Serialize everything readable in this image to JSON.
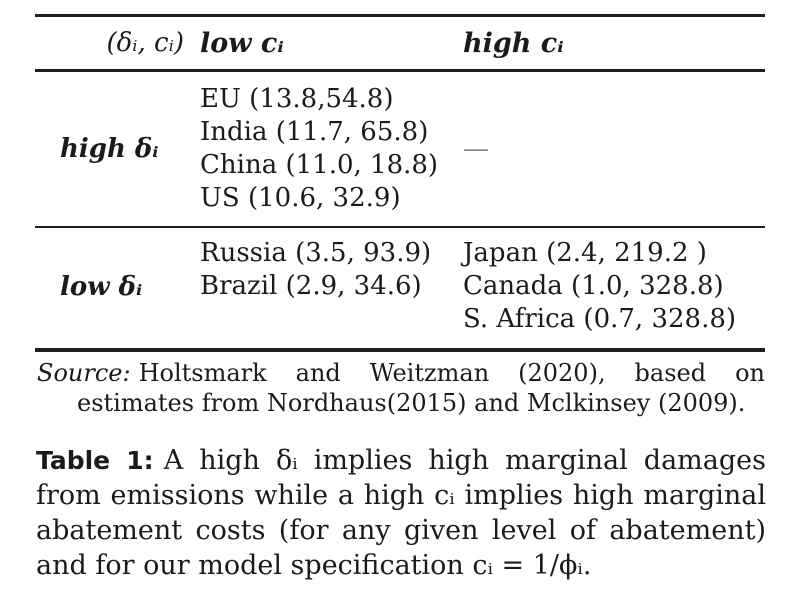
{
  "colors": {
    "text": "#1b1b1b",
    "rule": "#1e1e1e",
    "empty_dash": "#8a8a8a",
    "background": "#ffffff"
  },
  "table": {
    "header": {
      "corner": "(δᵢ, cᵢ)",
      "col_low": "low cᵢ",
      "col_high": "high cᵢ"
    },
    "rows": [
      {
        "label": "high δᵢ",
        "low_cells": [
          "EU (13.8,54.8)",
          "India (11.7, 65.8)",
          "China (11.0, 18.8)",
          "US (10.6, 32.9)"
        ],
        "high_cells": [
          "—"
        ]
      },
      {
        "label": "low δᵢ",
        "low_cells": [
          "Russia (3.5, 93.9)",
          "Brazil (2.9, 34.6)"
        ],
        "high_cells": [
          "Japan (2.4, 219.2 )",
          "Canada (1.0, 328.8)",
          "S. Africa (0.7, 328.8)"
        ]
      }
    ]
  },
  "source": {
    "label": "Source:",
    "text": "Holtsmark and Weitzman (2020), based on estimates from Nordhaus(2015) and Mclkinsey (2009)."
  },
  "caption": {
    "label": "Table 1:",
    "text": "A high δᵢ implies high marginal damages from emissions while a high cᵢ implies high marginal abate­ment costs (for any given level of abatement) and for our model specification cᵢ = 1/ϕᵢ."
  }
}
